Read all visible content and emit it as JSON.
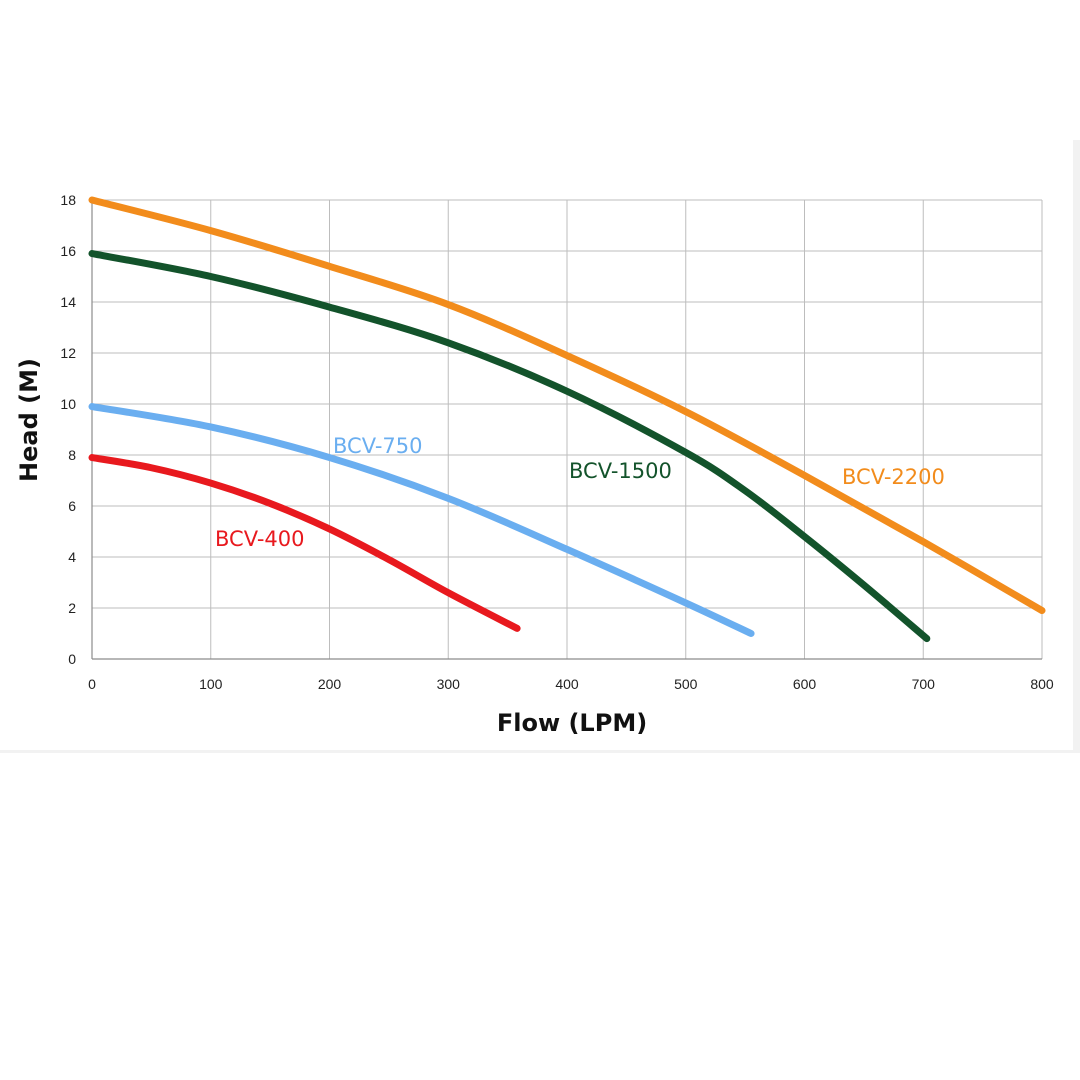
{
  "chart_data": {
    "type": "line",
    "title": "",
    "xlabel": "Flow (LPM)",
    "ylabel": "Head (M)",
    "xlim": [
      0,
      800
    ],
    "ylim": [
      0,
      18
    ],
    "xticks": [
      "0",
      "100",
      "200",
      "300",
      "400",
      "500",
      "600",
      "700",
      "800"
    ],
    "yticks": [
      "0",
      "2",
      "4",
      "6",
      "8",
      "10",
      "12",
      "14",
      "16",
      "18"
    ],
    "grid": true,
    "legend": "inline labels",
    "series": [
      {
        "name": "BCV-400",
        "color": "#e8191e",
        "x": [
          0,
          50,
          100,
          150,
          200,
          250,
          300,
          358
        ],
        "y": [
          7.9,
          7.5,
          6.9,
          6.1,
          5.1,
          3.9,
          2.6,
          1.2
        ]
      },
      {
        "name": "BCV-750",
        "color": "#6aaef0",
        "x": [
          0,
          100,
          200,
          300,
          400,
          500,
          555
        ],
        "y": [
          9.9,
          9.1,
          7.9,
          6.3,
          4.3,
          2.2,
          1.0
        ]
      },
      {
        "name": "BCV-1500",
        "color": "#13532b",
        "x": [
          0,
          100,
          200,
          300,
          400,
          500,
          550,
          600,
          650,
          703
        ],
        "y": [
          15.9,
          15.0,
          13.8,
          12.4,
          10.5,
          8.1,
          6.6,
          4.8,
          2.9,
          0.8
        ]
      },
      {
        "name": "BCV-2200",
        "color": "#f28c1c",
        "x": [
          0,
          100,
          200,
          300,
          400,
          500,
          600,
          700,
          800
        ],
        "y": [
          18.0,
          16.8,
          15.4,
          13.9,
          11.9,
          9.7,
          7.2,
          4.6,
          1.9
        ]
      }
    ]
  }
}
